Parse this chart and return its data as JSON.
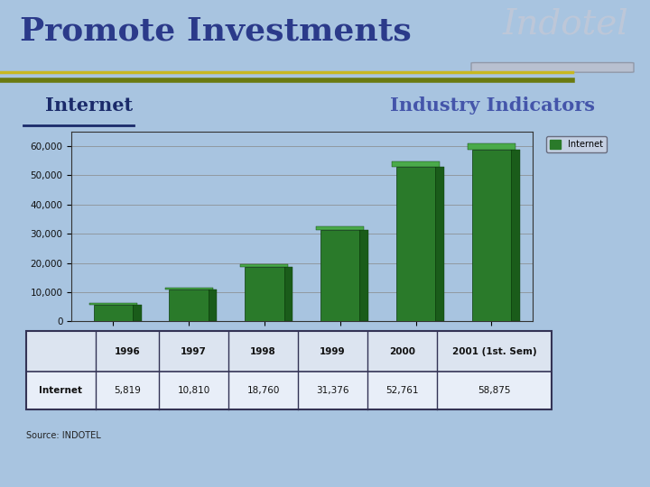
{
  "title": "Promote Investments",
  "subtitle_left": "Internet",
  "subtitle_right": "Industry Indicators",
  "indotel_text": "Indotel",
  "source_text": "Source: INDOTEL",
  "background_color": "#a8c4e0",
  "title_color": "#2b3a8a",
  "subtitle_left_color": "#1a2a6a",
  "subtitle_right_color": "#4455aa",
  "indotel_color": "#c0c8d8",
  "categories": [
    "1996",
    "1997",
    "1998",
    "1999",
    "2000",
    "2001 (1st.\nSem)"
  ],
  "values": [
    5819,
    10810,
    18760,
    31376,
    52761,
    58875
  ],
  "bar_color_dark": "#1a5c1a",
  "bar_color_mid": "#2a7a2a",
  "bar_color_light": "#4aaa4a",
  "ylim": [
    0,
    65000
  ],
  "yticks": [
    0,
    10000,
    20000,
    30000,
    40000,
    50000,
    60000
  ],
  "ytick_labels": [
    "0",
    "10,000",
    "20,000",
    "30,000",
    "40,000",
    "50,000",
    "60,000"
  ],
  "legend_label": "Internet",
  "table_headers": [
    "",
    "1996",
    "1997",
    "1998",
    "1999",
    "2000",
    "2001 (1st. Sem)"
  ],
  "table_row_label": "Internet",
  "table_values": [
    "5,819",
    "10,810",
    "18,760",
    "31,376",
    "52,761",
    "58,875"
  ],
  "separator_color_dark": "#6a7a10",
  "separator_color_gold": "#c8b820"
}
